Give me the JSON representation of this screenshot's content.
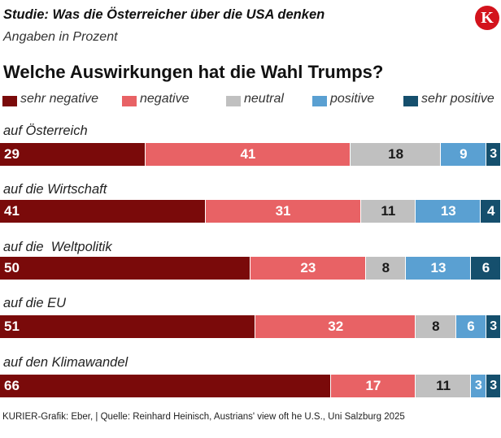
{
  "header": {
    "study_title": "Studie: Was die Österreicher über die USA denken",
    "unit_note": "Angaben in Prozent",
    "logo_letter": "K"
  },
  "chart_data": {
    "type": "bar",
    "orientation": "horizontal",
    "stacked": true,
    "title": "Welche Auswirkungen hat die Wahl Trumps?",
    "unit": "Prozent",
    "categories": [
      "auf Österreich",
      "auf die Wirtschaft",
      "auf die  Weltpolitik",
      "auf die EU",
      "auf den Klimawandel"
    ],
    "series": [
      {
        "name": "sehr negative",
        "color": "#7a0a0a",
        "text_color": "#ffffff",
        "values": [
          29,
          41,
          50,
          51,
          66
        ]
      },
      {
        "name": "negative",
        "color": "#e86265",
        "text_color": "#ffffff",
        "values": [
          41,
          31,
          23,
          32,
          17
        ]
      },
      {
        "name": "neutral",
        "color": "#c0c0c0",
        "text_color": "#1a1a1a",
        "values": [
          18,
          11,
          8,
          8,
          11
        ]
      },
      {
        "name": "positive",
        "color": "#5aa0d2",
        "text_color": "#ffffff",
        "values": [
          9,
          13,
          13,
          6,
          3
        ]
      },
      {
        "name": "sehr positive",
        "color": "#154f6d",
        "text_color": "#ffffff",
        "values": [
          3,
          4,
          6,
          3,
          3
        ]
      }
    ],
    "legend_position": "top"
  },
  "footer": {
    "source": "KURIER-Grafik: Eber, | Quelle: Reinhard Heinisch, Austrians' view oft he U.S., Uni Salzburg 2025"
  }
}
